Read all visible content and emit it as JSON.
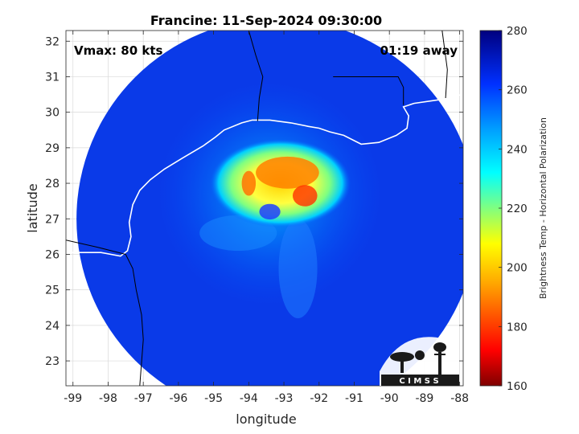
{
  "chart_data": {
    "type": "heatmap",
    "title": "Francine: 11-Sep-2024 09:30:00",
    "xlabel": "longitude",
    "ylabel": "latitude",
    "xlim": [
      -99.2,
      -87.9
    ],
    "ylim": [
      22.3,
      32.3
    ],
    "x_ticks": [
      -99,
      -98,
      -97,
      -96,
      -95,
      -94,
      -93,
      -92,
      -91,
      -90,
      -89,
      -88
    ],
    "y_ticks": [
      23,
      24,
      25,
      26,
      27,
      28,
      29,
      30,
      31,
      32
    ],
    "grid": true,
    "annotations": {
      "left": "Vmax: 80 kts",
      "right": "01:19 away"
    },
    "storm_center": {
      "lon": -93.4,
      "lat": 27.2
    },
    "swath_center": {
      "lon": -93.2,
      "lat": 27.0
    },
    "colorbar": {
      "label": "Brightness Temp - Horizontal Polarization",
      "min": 160,
      "max": 280,
      "ticks": [
        160,
        180,
        200,
        220,
        240,
        260,
        280
      ]
    },
    "coastline": [
      [
        -99.2,
        26.05
      ],
      [
        -98.6,
        26.05
      ],
      [
        -98.2,
        26.05
      ],
      [
        -97.65,
        25.95
      ],
      [
        -97.45,
        26.1
      ],
      [
        -97.35,
        26.5
      ],
      [
        -97.4,
        26.9
      ],
      [
        -97.3,
        27.4
      ],
      [
        -97.1,
        27.8
      ],
      [
        -96.8,
        28.1
      ],
      [
        -96.4,
        28.4
      ],
      [
        -95.9,
        28.7
      ],
      [
        -95.3,
        29.05
      ],
      [
        -94.95,
        29.3
      ],
      [
        -94.7,
        29.5
      ],
      [
        -94.2,
        29.7
      ],
      [
        -93.9,
        29.78
      ],
      [
        -93.4,
        29.78
      ],
      [
        -92.8,
        29.7
      ],
      [
        -92.3,
        29.6
      ],
      [
        -92.0,
        29.55
      ],
      [
        -91.7,
        29.45
      ],
      [
        -91.3,
        29.35
      ],
      [
        -90.8,
        29.1
      ],
      [
        -90.3,
        29.15
      ],
      [
        -89.8,
        29.35
      ],
      [
        -89.5,
        29.55
      ],
      [
        -89.45,
        29.9
      ],
      [
        -89.6,
        30.15
      ],
      [
        -89.3,
        30.25
      ],
      [
        -88.6,
        30.35
      ],
      [
        -88.2,
        30.45
      ],
      [
        -87.9,
        30.5
      ]
    ],
    "borders": [
      [
        [
          -93.75,
          29.75
        ],
        [
          -93.7,
          30.4
        ],
        [
          -93.6,
          31.0
        ],
        [
          -93.8,
          31.6
        ],
        [
          -94.0,
          32.3
        ]
      ],
      [
        [
          -91.6,
          31.0
        ],
        [
          -89.75,
          31.0
        ],
        [
          -89.6,
          30.7
        ],
        [
          -89.6,
          30.2
        ]
      ],
      [
        [
          -88.4,
          30.4
        ],
        [
          -88.35,
          31.2
        ],
        [
          -88.5,
          32.3
        ]
      ],
      [
        [
          -99.2,
          26.4
        ],
        [
          -98.3,
          26.2
        ],
        [
          -97.5,
          26.0
        ],
        [
          -97.3,
          25.6
        ],
        [
          -97.2,
          25.0
        ],
        [
          -97.05,
          24.3
        ],
        [
          -97.0,
          23.6
        ],
        [
          -97.1,
          22.3
        ]
      ]
    ],
    "logo_text": "C I M S S"
  }
}
